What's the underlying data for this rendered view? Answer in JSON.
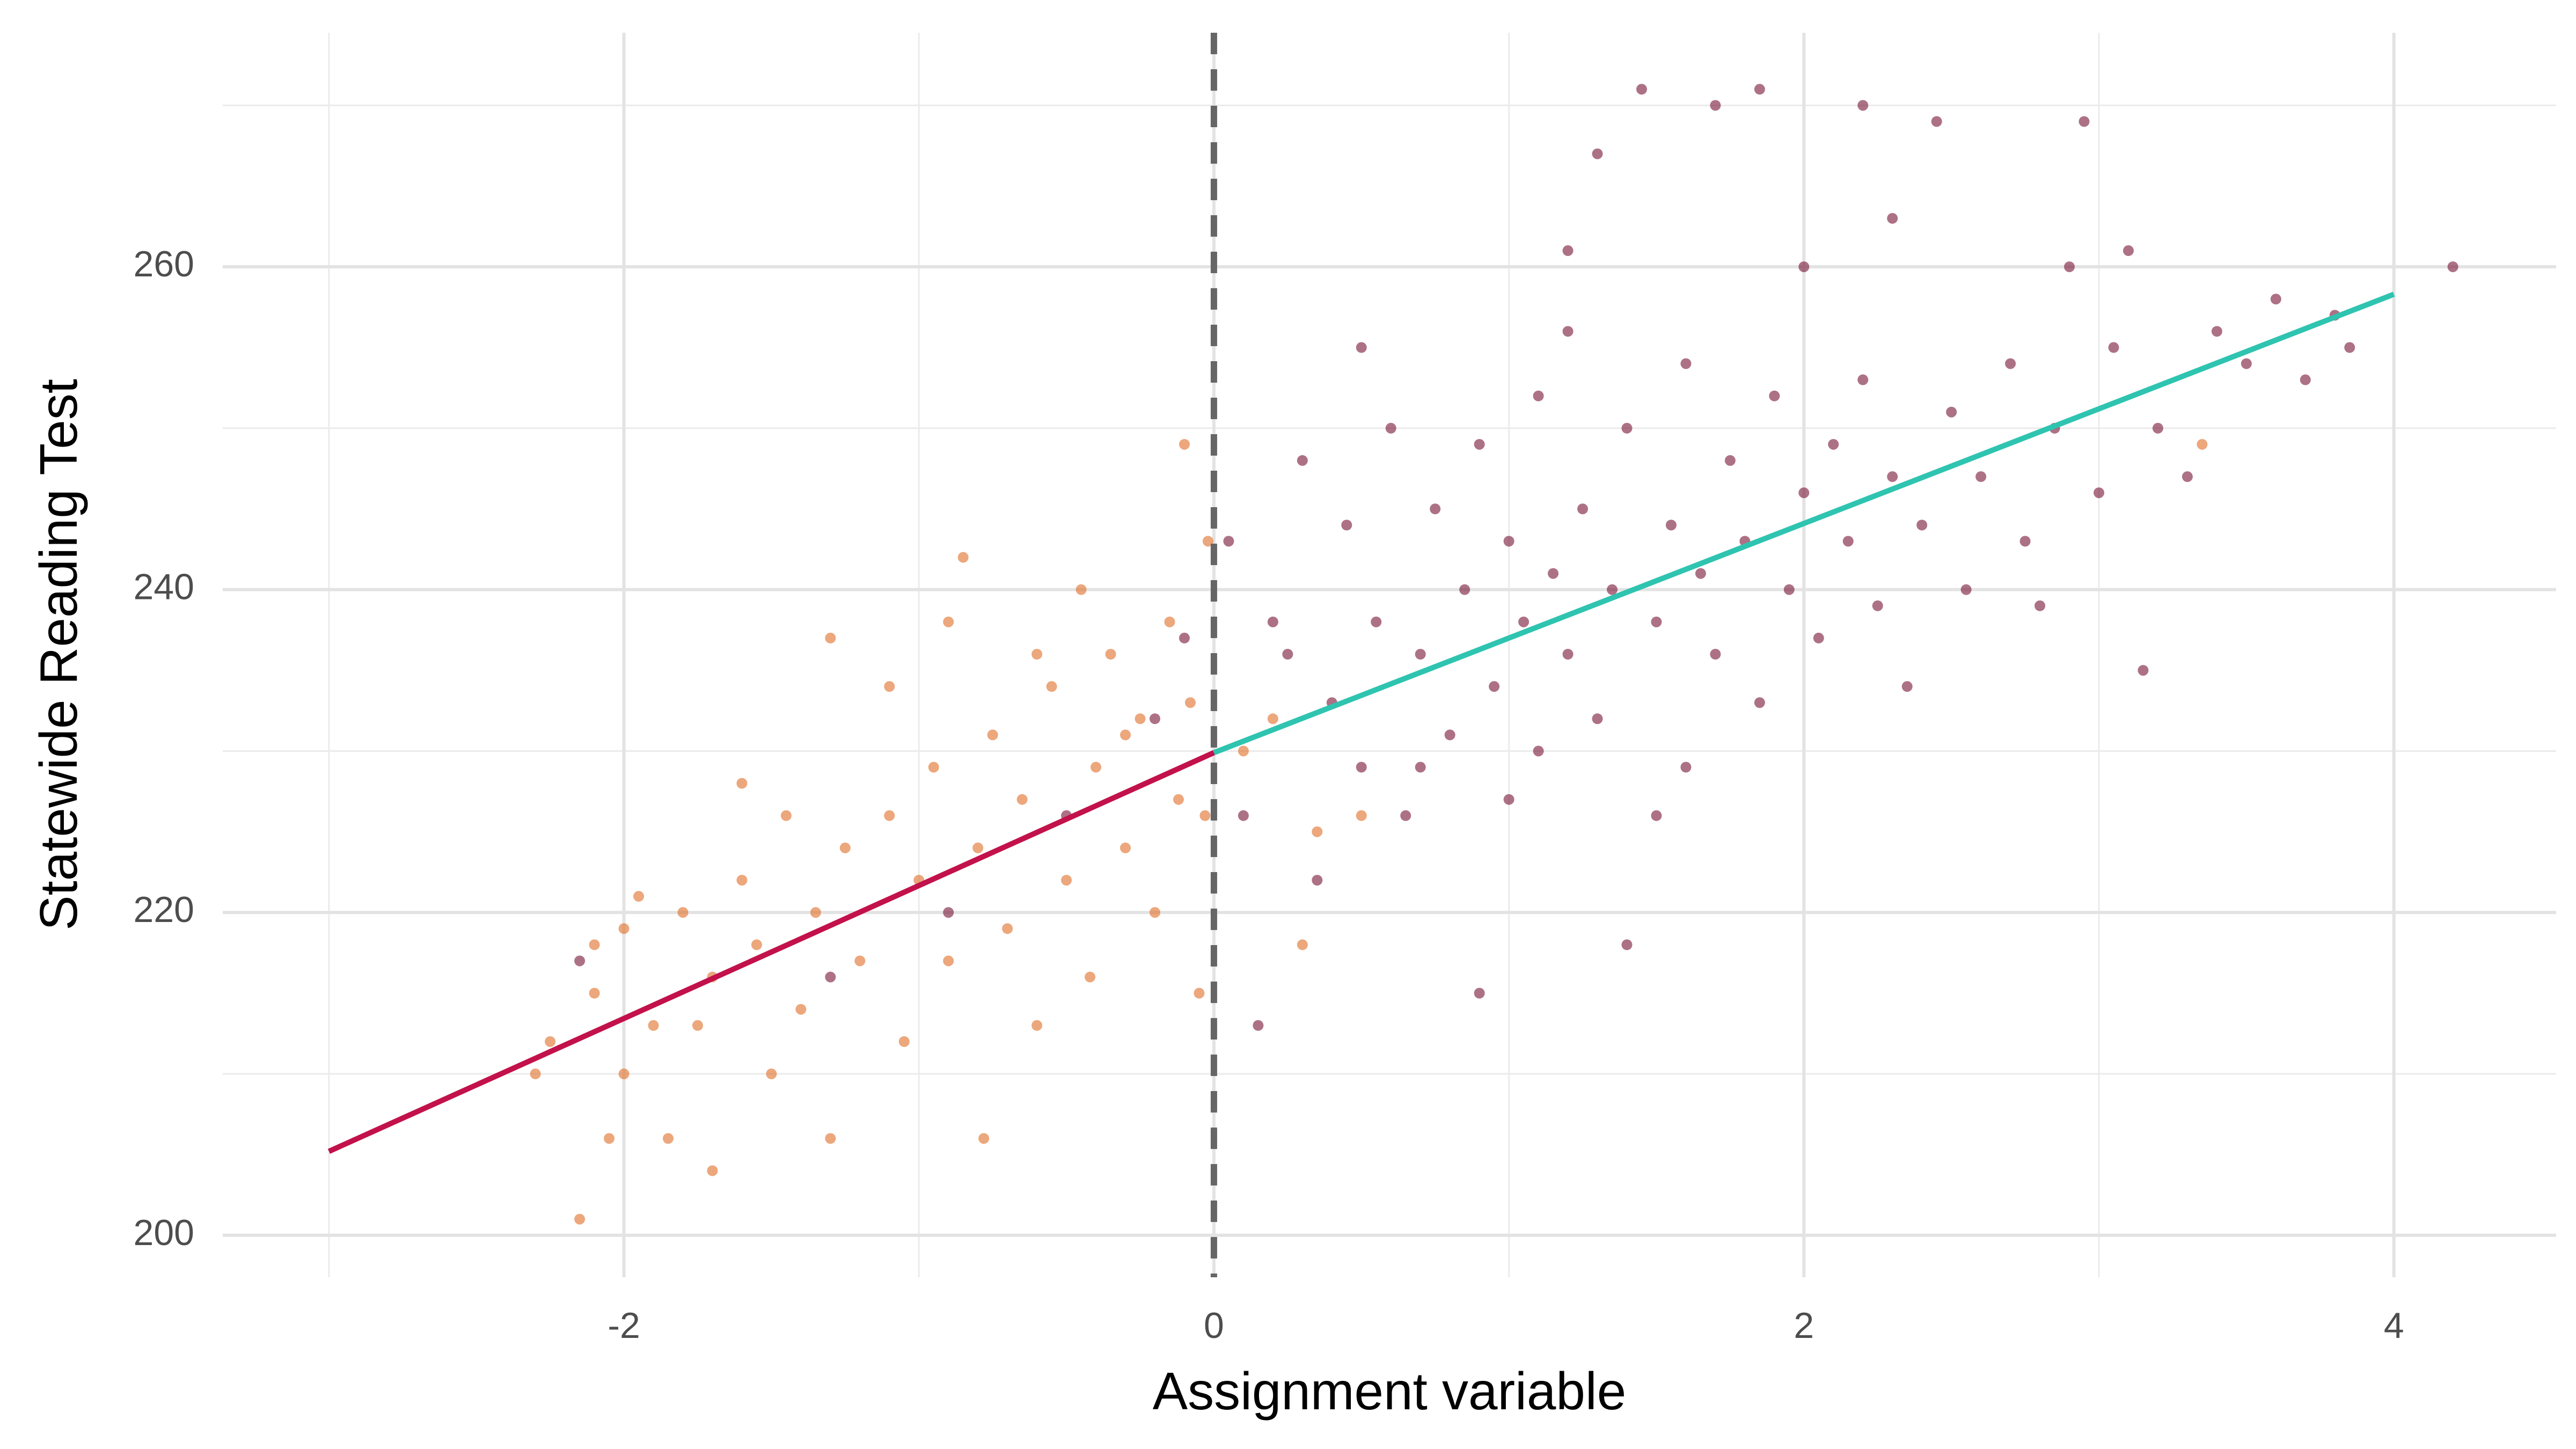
{
  "chart_data": {
    "type": "scatter",
    "x_label": "Assignment variable",
    "y_label": "Statewide Reading Test",
    "xlim": [
      -3.36,
      4.55
    ],
    "ylim": [
      197.4,
      274.5
    ],
    "xticks": [
      -2,
      0,
      2,
      4
    ],
    "yticks": [
      200,
      220,
      240,
      260
    ],
    "xminor": [
      -3,
      -1,
      1,
      3
    ],
    "yminor": [
      210,
      230,
      250,
      270
    ],
    "grid": true,
    "series": [
      {
        "color": "#e0712c",
        "x": [
          -2.3,
          -2.25,
          -2.15,
          -2.1,
          -2.05,
          -2,
          -2,
          -1.95,
          -1.9,
          -1.85,
          -1.8,
          -1.75,
          -1.7,
          -1.7,
          -1.6,
          -1.55,
          -1.5,
          -1.45,
          -1.4,
          -1.35,
          -1.3,
          -1.3,
          -1.25,
          -1.2,
          -1.1,
          -1.1,
          -1.05,
          -1,
          -0.95,
          -0.9,
          -0.9,
          -0.85,
          -0.8,
          -0.78,
          -0.75,
          -0.7,
          -0.65,
          -0.6,
          -0.55,
          -0.5,
          -0.45,
          -0.42,
          -0.4,
          -0.35,
          -0.3,
          -0.25,
          -0.2,
          -0.15,
          -0.12,
          -0.1,
          -0.08,
          -0.05,
          -0.03,
          -0.02,
          0.1,
          0.2,
          0.3,
          0.35,
          3.35,
          0.5,
          -0.6,
          -0.3,
          -1.6,
          -2.1
        ],
        "values": [
          210,
          212,
          201,
          218,
          206,
          219,
          210,
          221,
          213,
          206,
          220,
          213,
          204,
          216,
          222,
          218,
          210,
          226,
          214,
          220,
          237,
          206,
          224,
          217,
          226,
          234,
          212,
          222,
          229,
          217,
          238,
          242,
          224,
          206,
          231,
          219,
          227,
          213,
          234,
          222,
          240,
          216,
          229,
          236,
          224,
          232,
          220,
          238,
          227,
          249,
          233,
          215,
          226,
          243,
          230,
          232,
          218,
          225,
          249,
          226,
          236,
          231,
          228,
          215
        ]
      },
      {
        "color": "#7a1a3a",
        "x": [
          -2.15,
          -1.3,
          -0.9,
          -0.5,
          -0.2,
          -0.1,
          0.05,
          0.1,
          0.15,
          0.2,
          0.3,
          0.35,
          0.4,
          0.45,
          0.5,
          0.55,
          0.6,
          0.65,
          0.7,
          0.75,
          0.8,
          0.85,
          0.9,
          0.9,
          0.95,
          1,
          1,
          1.05,
          1.1,
          1.1,
          1.15,
          1.2,
          1.2,
          1.25,
          1.3,
          1.3,
          1.35,
          1.4,
          1.4,
          1.45,
          1.5,
          1.55,
          1.6,
          1.6,
          1.65,
          1.7,
          1.7,
          1.75,
          1.8,
          1.85,
          1.85,
          1.9,
          1.95,
          2,
          2,
          2.05,
          2.1,
          2.15,
          2.2,
          2.2,
          2.25,
          2.3,
          2.3,
          2.4,
          2.45,
          2.5,
          2.55,
          2.6,
          2.7,
          2.75,
          2.8,
          2.85,
          2.9,
          2.95,
          3,
          3.05,
          3.1,
          3.15,
          3.2,
          3.3,
          3.4,
          3.5,
          3.6,
          3.7,
          3.8,
          3.85,
          4.2,
          1.2,
          0.5,
          0.25,
          0.7,
          1.5,
          2.35
        ],
        "values": [
          217,
          216,
          220,
          226,
          232,
          237,
          243,
          226,
          213,
          238,
          248,
          222,
          233,
          244,
          229,
          238,
          250,
          226,
          236,
          245,
          231,
          240,
          215,
          249,
          234,
          243,
          227,
          238,
          252,
          230,
          241,
          236,
          256,
          245,
          232,
          267,
          240,
          218,
          250,
          271,
          238,
          244,
          229,
          254,
          241,
          270,
          236,
          248,
          243,
          271,
          233,
          252,
          240,
          246,
          260,
          237,
          249,
          243,
          270,
          253,
          239,
          247,
          263,
          244,
          269,
          251,
          240,
          247,
          254,
          243,
          239,
          250,
          260,
          269,
          246,
          255,
          261,
          235,
          250,
          247,
          256,
          254,
          258,
          253,
          257,
          255,
          260,
          261,
          255,
          236,
          229,
          226,
          234
        ]
      }
    ],
    "lines": [
      {
        "color": "#c2114b",
        "x": [
          -3,
          0
        ],
        "values": [
          205.2,
          229.9
        ]
      },
      {
        "color": "#2ec4b0",
        "x": [
          0,
          4
        ],
        "values": [
          229.9,
          258.3
        ]
      }
    ],
    "vline": {
      "x": 0,
      "color": "#666666"
    }
  }
}
